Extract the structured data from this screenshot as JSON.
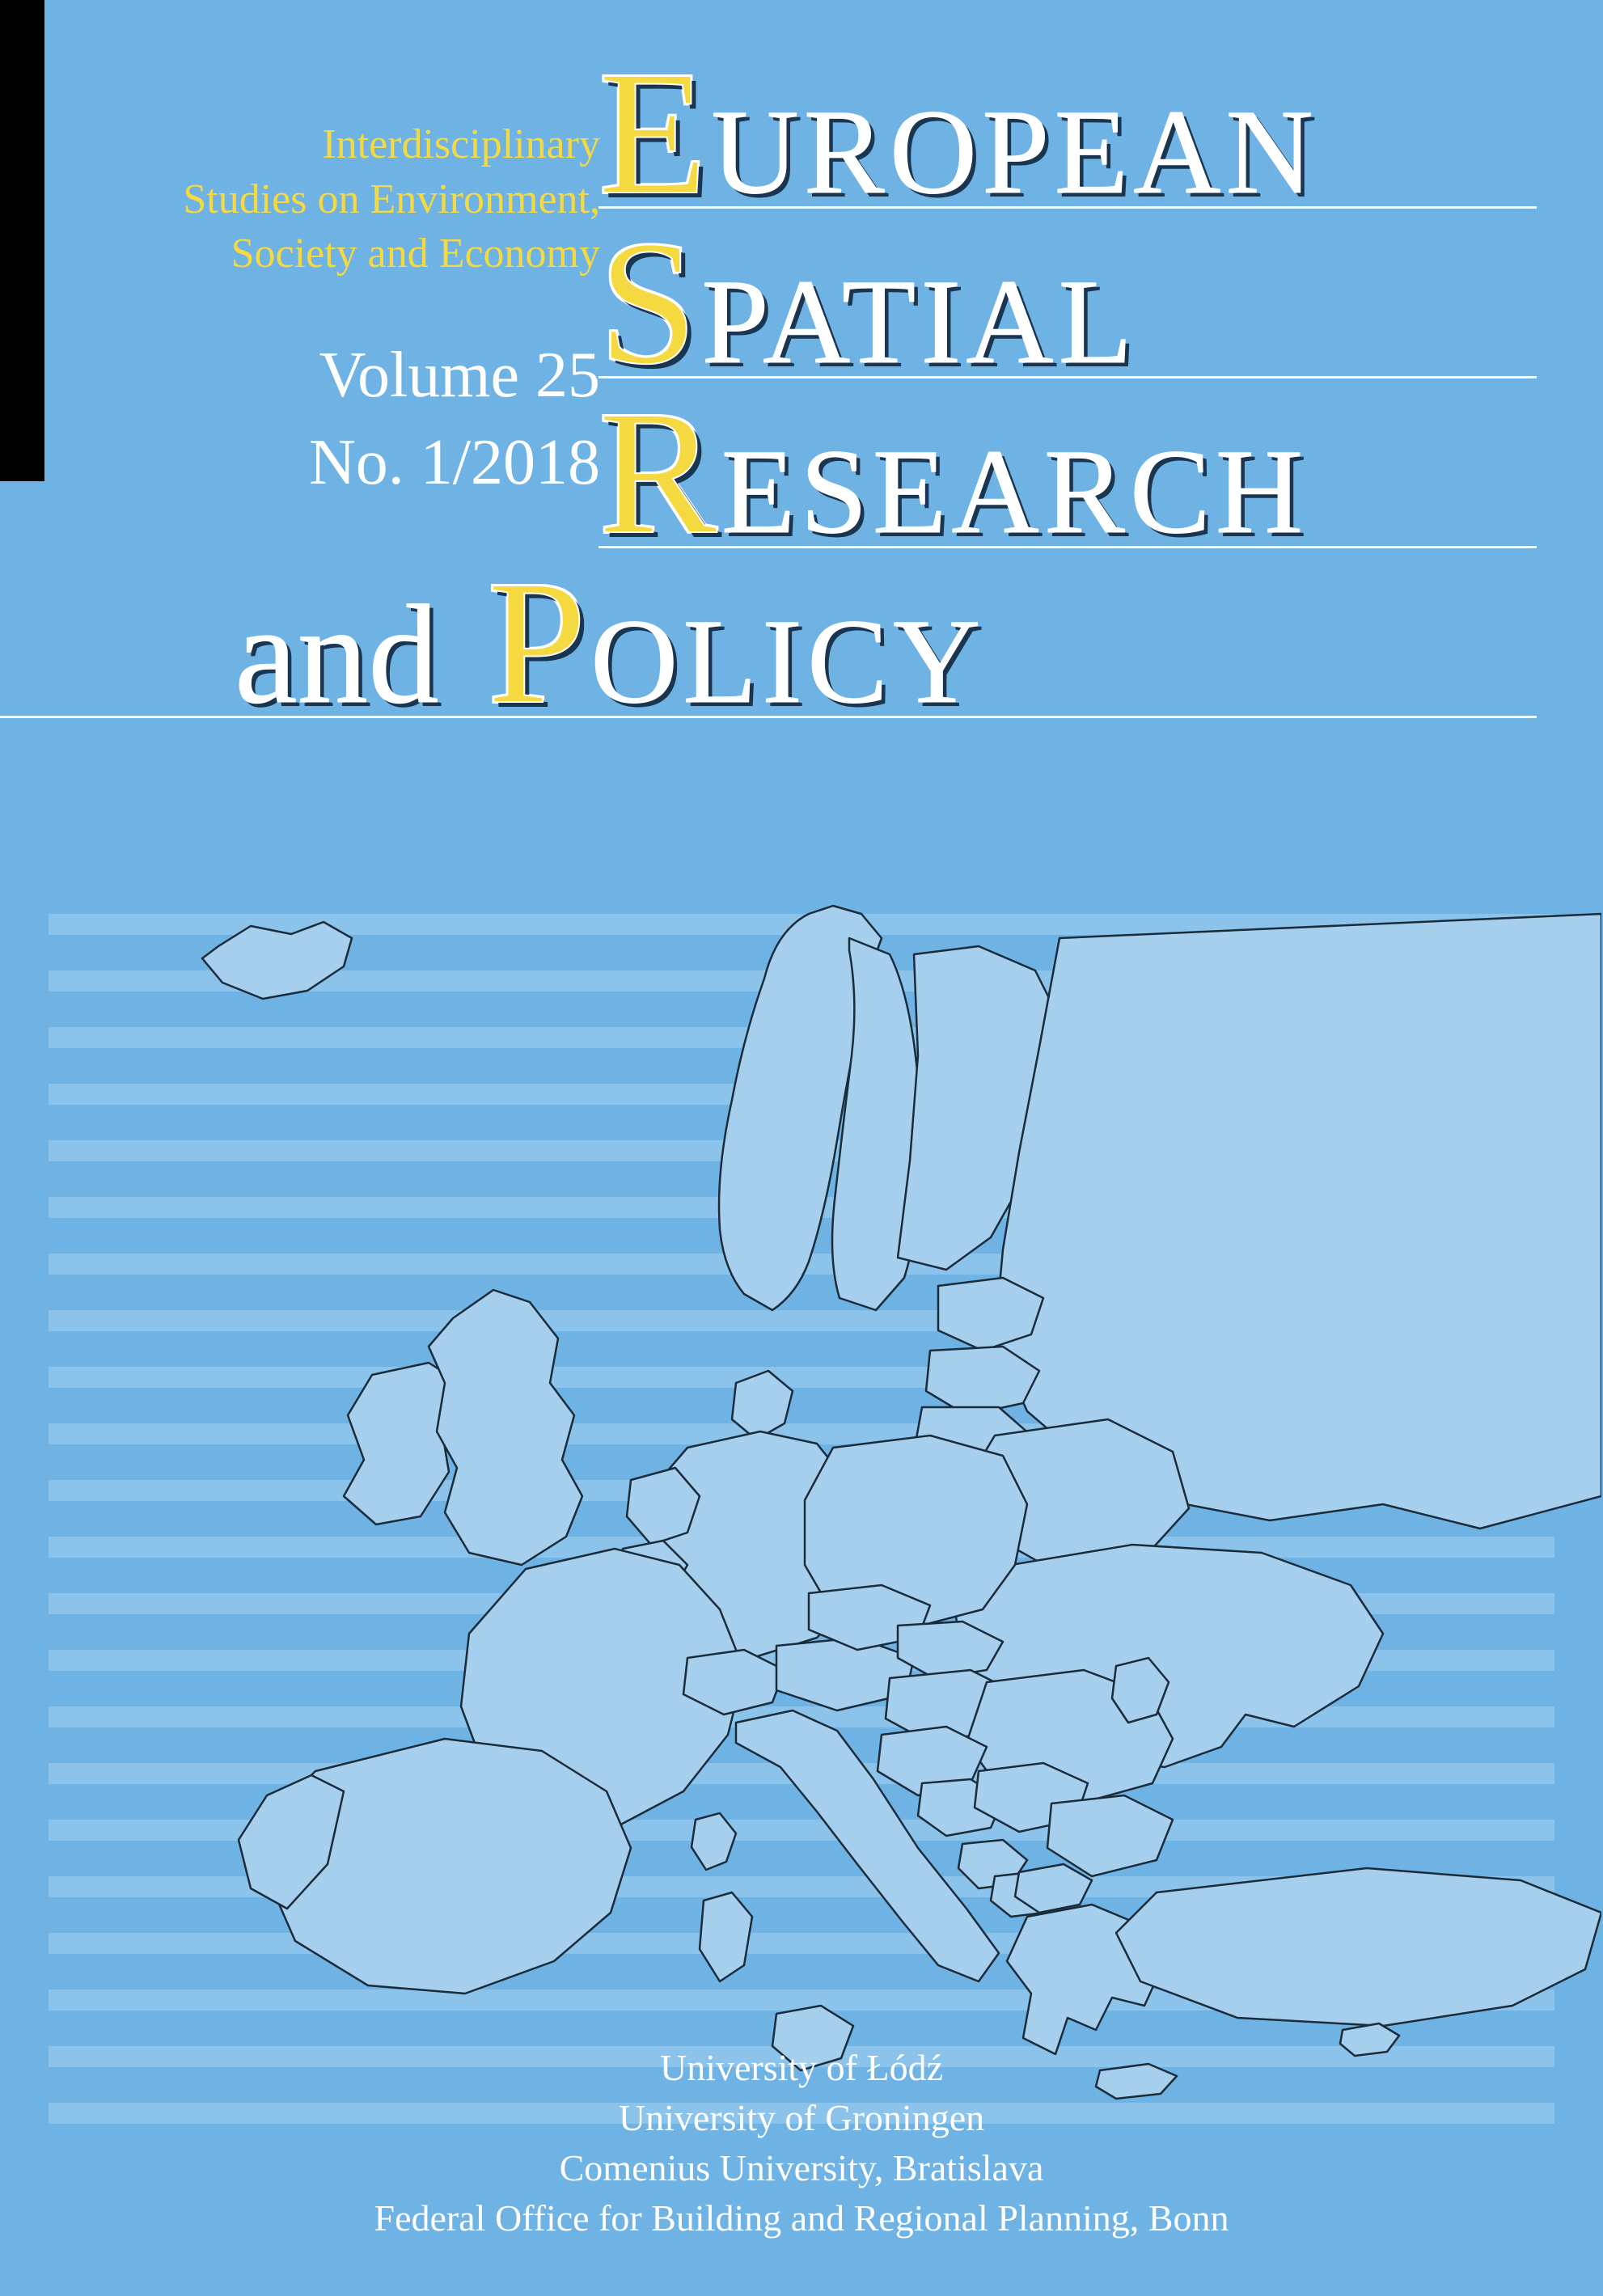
{
  "cover": {
    "subtitle_lines": [
      "Interdisciplinary",
      "Studies on Environment,",
      "Society and Economy"
    ],
    "volume_line1": "Volume 25",
    "volume_line2": "No. 1/2018",
    "title_words": [
      {
        "big": "E",
        "rest": "UROPEAN",
        "and": false
      },
      {
        "big": "S",
        "rest": "PATIAL",
        "and": false
      },
      {
        "big": "R",
        "rest": "ESEARCH",
        "and": false
      },
      {
        "big": "P",
        "rest": "OLICY",
        "and": true
      }
    ],
    "and_word": "and",
    "universities": [
      "University of Łódź",
      "University of Groningen",
      "Comenius University, Bratislava",
      "Federal Office for Building and Regional Planning, Bonn"
    ]
  },
  "styling": {
    "background_color": "#6fb2e4",
    "stripe_color": "#8cc3ea",
    "map_fill": "#a6cfee",
    "map_stroke": "#1a2b3a",
    "yellow": "#f5d940",
    "white": "#ffffff",
    "shadow": "#1a3550",
    "subtitle_fontsize": 52,
    "volume_fontsize": 80,
    "big_letter_fontsize": 220,
    "rest_word_fontsize": 150,
    "and_fontsize": 175,
    "uni_fontsize": 46,
    "stripes": {
      "count": 22,
      "top_start": 40,
      "spacing": 70,
      "height": 26,
      "widths_from_left": [
        720,
        760,
        800,
        840,
        880,
        920,
        960,
        1000,
        1040,
        1080,
        1120,
        1080,
        1040,
        1000,
        960,
        920,
        880,
        840,
        800,
        760,
        720,
        680
      ]
    }
  },
  "map": {
    "type": "map",
    "description": "outline map of Europe, light blue landmass on medium blue ocean, thin dark country borders"
  }
}
